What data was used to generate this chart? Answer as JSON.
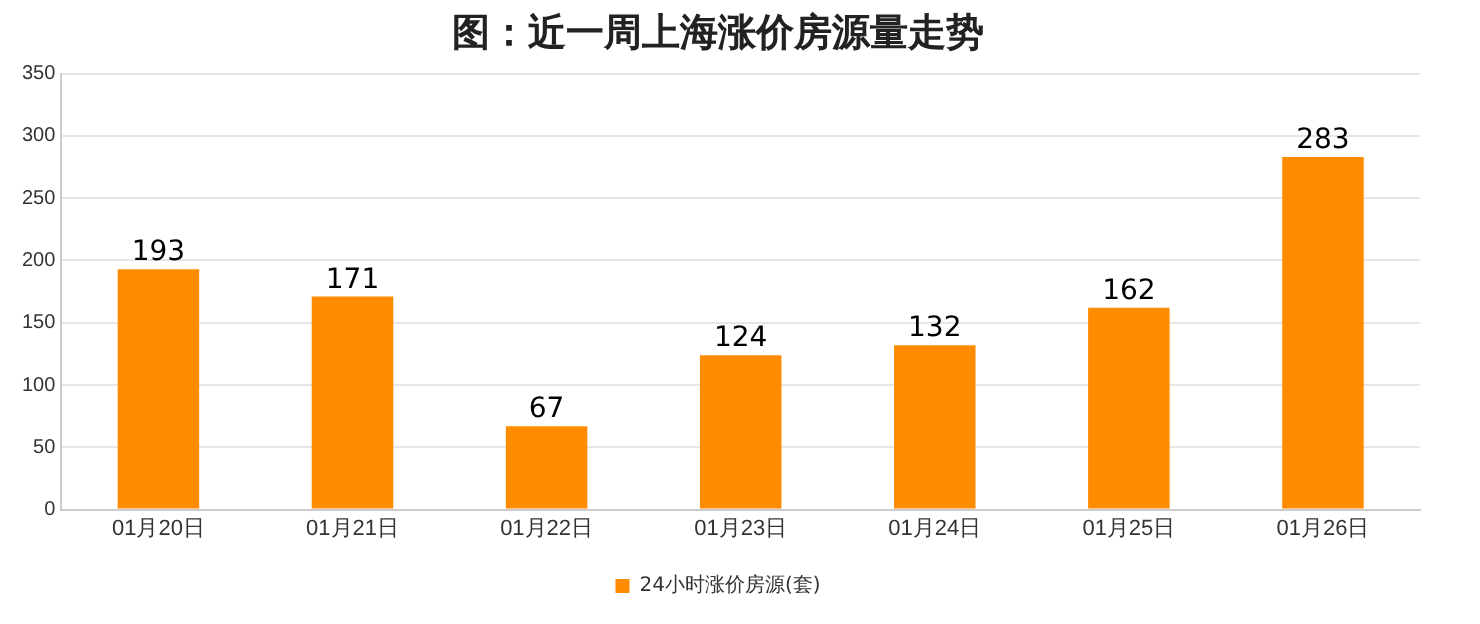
{
  "chart_data": {
    "type": "bar",
    "title": "图：近一周上海涨价房源量走势",
    "categories": [
      "01月20日",
      "01月21日",
      "01月22日",
      "01月23日",
      "01月24日",
      "01月25日",
      "01月26日"
    ],
    "series": [
      {
        "name": "24小时涨价房源(套)",
        "color": "#ff8c00",
        "values": [
          193,
          171,
          67,
          124,
          132,
          162,
          283
        ]
      }
    ],
    "ylim": [
      0,
      350
    ],
    "yticks": [
      0,
      50,
      100,
      150,
      200,
      250,
      300,
      350
    ],
    "grid": "y",
    "legend": "bottom",
    "data_labels": true
  }
}
